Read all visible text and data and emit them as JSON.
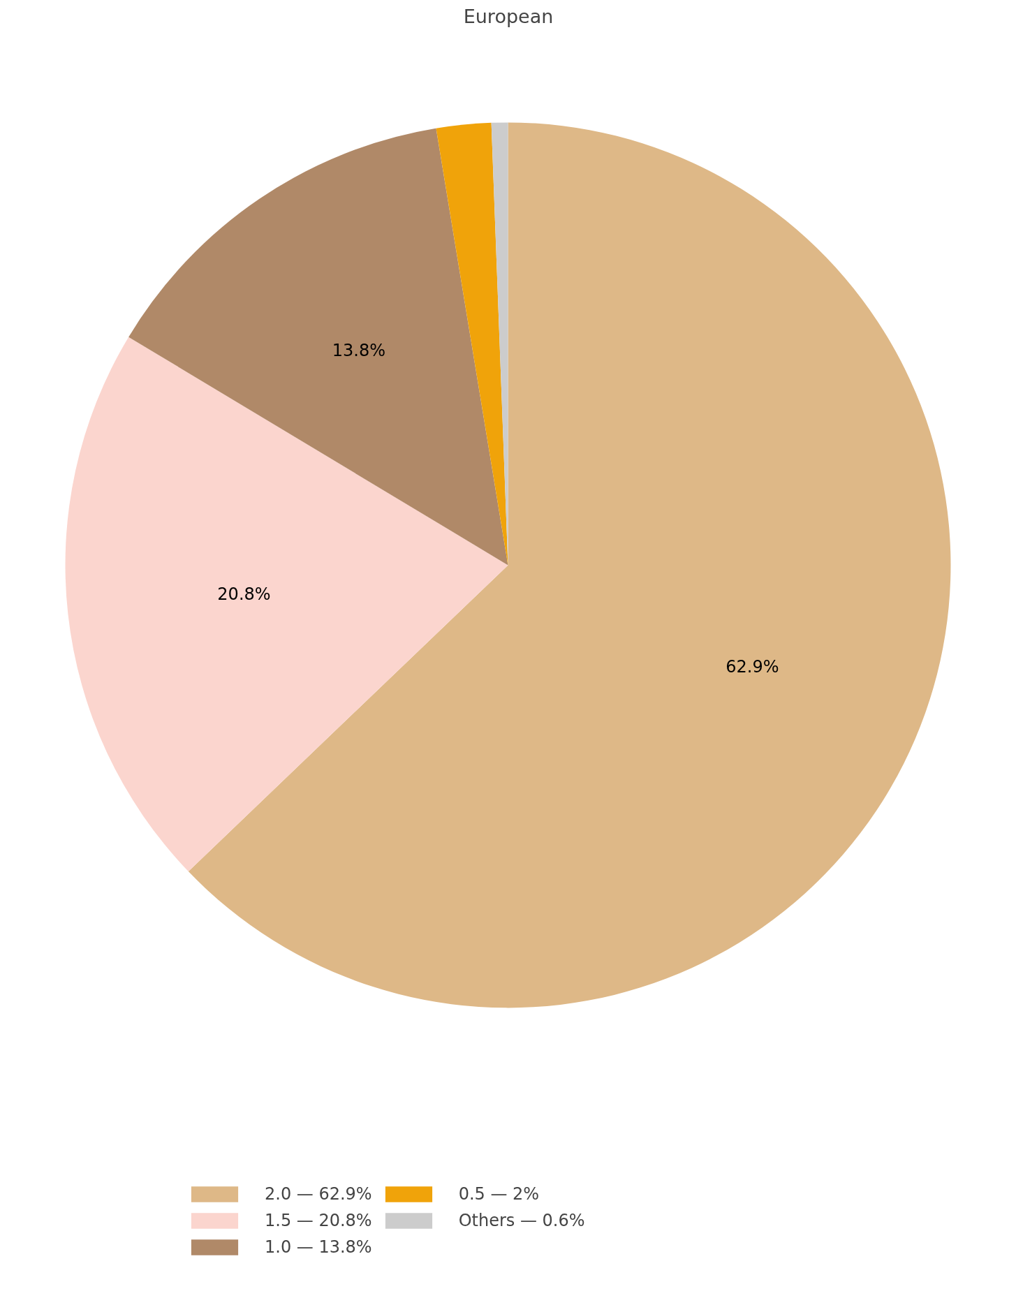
{
  "chart_data": {
    "type": "pie",
    "title": "European",
    "categories": [
      "2.0 — 62.9%",
      "1.5 — 20.8%",
      "1.0 — 13.8%",
      "0.5 — 2%",
      "Others — 0.6%"
    ],
    "values": [
      62.9,
      20.8,
      13.8,
      2,
      0.6
    ],
    "colors": [
      "#deb887",
      "#fbd5ce",
      "#b08968",
      "#f0a30a",
      "#cccccc"
    ],
    "value_labels": [
      "62.9%",
      "20.8%",
      "13.8%",
      null,
      null
    ],
    "legend": "bottom"
  }
}
